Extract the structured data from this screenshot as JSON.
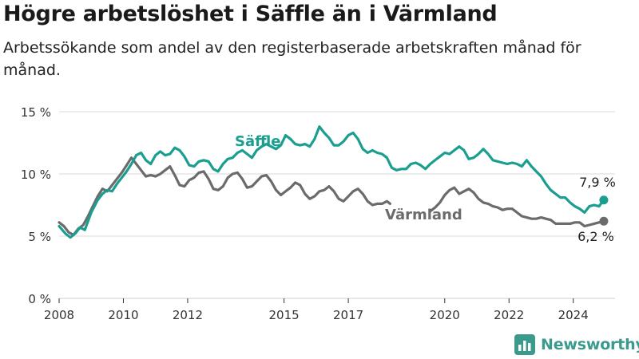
{
  "title": "Högre arbetslöshet i Säffle än i Värmland",
  "subtitle": "Arbetssökande som andel av den registerbaserade arbetskraften månad för månad.",
  "brand": {
    "name": "Newsworthy",
    "icon": "bar-chart-logo-icon"
  },
  "colors": {
    "saffle": "#1a9e8f",
    "varmland": "#6b6b6b",
    "grid": "#d9d9d9",
    "axis": "#333333",
    "brand": "#3a9a8c"
  },
  "chart_data": {
    "type": "line",
    "title": "Högre arbetslöshet i Säffle än i Värmland",
    "ylim": [
      0,
      15
    ],
    "xlim": [
      2008,
      2025.3
    ],
    "y_ticks": [
      0,
      5,
      10,
      15
    ],
    "y_tick_labels": [
      "0 %",
      "5 %",
      "10 %",
      "15 %"
    ],
    "x_ticks": [
      2008,
      2010,
      2012,
      2015,
      2017,
      2020,
      2022,
      2024
    ],
    "x_tick_labels": [
      "2008",
      "2010",
      "2012",
      "2015",
      "2017",
      "2020",
      "2022",
      "2024"
    ],
    "grid": "horizontal",
    "series": [
      {
        "name": "Säffle",
        "color": "#1a9e8f",
        "end_label": "7,9 %",
        "points": [
          [
            2008.0,
            5.8
          ],
          [
            2008.2,
            5.2
          ],
          [
            2008.35,
            4.9
          ],
          [
            2008.5,
            5.2
          ],
          [
            2008.65,
            5.7
          ],
          [
            2008.8,
            5.5
          ],
          [
            2009.0,
            6.9
          ],
          [
            2009.2,
            7.9
          ],
          [
            2009.35,
            8.4
          ],
          [
            2009.5,
            8.7
          ],
          [
            2009.65,
            8.6
          ],
          [
            2009.8,
            9.2
          ],
          [
            2009.95,
            9.7
          ],
          [
            2010.1,
            10.2
          ],
          [
            2010.25,
            10.8
          ],
          [
            2010.4,
            11.5
          ],
          [
            2010.55,
            11.7
          ],
          [
            2010.7,
            11.1
          ],
          [
            2010.85,
            10.8
          ],
          [
            2011.0,
            11.5
          ],
          [
            2011.15,
            11.8
          ],
          [
            2011.3,
            11.5
          ],
          [
            2011.45,
            11.6
          ],
          [
            2011.6,
            12.1
          ],
          [
            2011.75,
            11.9
          ],
          [
            2011.9,
            11.4
          ],
          [
            2012.05,
            10.7
          ],
          [
            2012.2,
            10.6
          ],
          [
            2012.35,
            11.0
          ],
          [
            2012.5,
            11.1
          ],
          [
            2012.65,
            11.0
          ],
          [
            2012.8,
            10.4
          ],
          [
            2012.95,
            10.2
          ],
          [
            2013.1,
            10.8
          ],
          [
            2013.25,
            11.2
          ],
          [
            2013.4,
            11.3
          ],
          [
            2013.55,
            11.7
          ],
          [
            2013.7,
            11.9
          ],
          [
            2013.85,
            11.6
          ],
          [
            2014.0,
            11.3
          ],
          [
            2014.15,
            11.9
          ],
          [
            2014.3,
            12.2
          ],
          [
            2014.45,
            12.4
          ],
          [
            2014.6,
            12.2
          ],
          [
            2014.75,
            12.0
          ],
          [
            2014.9,
            12.3
          ],
          [
            2015.05,
            13.1
          ],
          [
            2015.2,
            12.8
          ],
          [
            2015.35,
            12.4
          ],
          [
            2015.5,
            12.3
          ],
          [
            2015.65,
            12.4
          ],
          [
            2015.8,
            12.2
          ],
          [
            2015.95,
            12.8
          ],
          [
            2016.1,
            13.8
          ],
          [
            2016.25,
            13.3
          ],
          [
            2016.4,
            12.9
          ],
          [
            2016.55,
            12.3
          ],
          [
            2016.7,
            12.3
          ],
          [
            2016.85,
            12.6
          ],
          [
            2017.0,
            13.1
          ],
          [
            2017.15,
            13.3
          ],
          [
            2017.3,
            12.8
          ],
          [
            2017.45,
            12.0
          ],
          [
            2017.6,
            11.7
          ],
          [
            2017.75,
            11.9
          ],
          [
            2017.9,
            11.7
          ],
          [
            2018.05,
            11.6
          ],
          [
            2018.2,
            11.3
          ],
          [
            2018.35,
            10.5
          ],
          [
            2018.5,
            10.3
          ],
          [
            2018.65,
            10.4
          ],
          [
            2018.8,
            10.4
          ],
          [
            2018.95,
            10.8
          ],
          [
            2019.1,
            10.9
          ],
          [
            2019.25,
            10.7
          ],
          [
            2019.4,
            10.4
          ],
          [
            2019.55,
            10.8
          ],
          [
            2019.7,
            11.1
          ],
          [
            2019.85,
            11.4
          ],
          [
            2020.0,
            11.7
          ],
          [
            2020.15,
            11.6
          ],
          [
            2020.3,
            11.9
          ],
          [
            2020.45,
            12.2
          ],
          [
            2020.6,
            11.9
          ],
          [
            2020.75,
            11.2
          ],
          [
            2020.9,
            11.3
          ],
          [
            2021.05,
            11.6
          ],
          [
            2021.2,
            12.0
          ],
          [
            2021.35,
            11.6
          ],
          [
            2021.5,
            11.1
          ],
          [
            2021.65,
            11.0
          ],
          [
            2021.8,
            10.9
          ],
          [
            2021.95,
            10.8
          ],
          [
            2022.1,
            10.9
          ],
          [
            2022.25,
            10.8
          ],
          [
            2022.4,
            10.6
          ],
          [
            2022.55,
            11.1
          ],
          [
            2022.7,
            10.6
          ],
          [
            2022.85,
            10.2
          ],
          [
            2023.0,
            9.8
          ],
          [
            2023.15,
            9.2
          ],
          [
            2023.3,
            8.7
          ],
          [
            2023.45,
            8.4
          ],
          [
            2023.6,
            8.1
          ],
          [
            2023.75,
            8.1
          ],
          [
            2023.9,
            7.7
          ],
          [
            2024.05,
            7.4
          ],
          [
            2024.2,
            7.2
          ],
          [
            2024.35,
            6.9
          ],
          [
            2024.5,
            7.4
          ],
          [
            2024.65,
            7.5
          ],
          [
            2024.8,
            7.4
          ],
          [
            2024.95,
            7.9
          ]
        ]
      },
      {
        "name": "Värmland",
        "color": "#6b6b6b",
        "end_label": "6,2 %",
        "points": [
          [
            2008.0,
            6.1
          ],
          [
            2008.15,
            5.8
          ],
          [
            2008.3,
            5.3
          ],
          [
            2008.45,
            5.1
          ],
          [
            2008.6,
            5.6
          ],
          [
            2008.75,
            5.9
          ],
          [
            2008.9,
            6.6
          ],
          [
            2009.05,
            7.4
          ],
          [
            2009.2,
            8.2
          ],
          [
            2009.35,
            8.8
          ],
          [
            2009.5,
            8.6
          ],
          [
            2009.65,
            9.1
          ],
          [
            2009.8,
            9.6
          ],
          [
            2009.95,
            10.1
          ],
          [
            2010.1,
            10.7
          ],
          [
            2010.25,
            11.3
          ],
          [
            2010.4,
            10.8
          ],
          [
            2010.55,
            10.3
          ],
          [
            2010.7,
            9.8
          ],
          [
            2010.85,
            9.9
          ],
          [
            2011.0,
            9.8
          ],
          [
            2011.15,
            10.0
          ],
          [
            2011.3,
            10.3
          ],
          [
            2011.45,
            10.6
          ],
          [
            2011.6,
            9.9
          ],
          [
            2011.75,
            9.1
          ],
          [
            2011.9,
            9.0
          ],
          [
            2012.05,
            9.5
          ],
          [
            2012.2,
            9.7
          ],
          [
            2012.35,
            10.1
          ],
          [
            2012.5,
            10.2
          ],
          [
            2012.65,
            9.6
          ],
          [
            2012.8,
            8.8
          ],
          [
            2012.95,
            8.7
          ],
          [
            2013.1,
            9.0
          ],
          [
            2013.25,
            9.7
          ],
          [
            2013.4,
            10.0
          ],
          [
            2013.55,
            10.1
          ],
          [
            2013.7,
            9.6
          ],
          [
            2013.85,
            8.9
          ],
          [
            2014.0,
            9.0
          ],
          [
            2014.15,
            9.4
          ],
          [
            2014.3,
            9.8
          ],
          [
            2014.45,
            9.9
          ],
          [
            2014.6,
            9.4
          ],
          [
            2014.75,
            8.7
          ],
          [
            2014.9,
            8.3
          ],
          [
            2015.05,
            8.6
          ],
          [
            2015.2,
            8.9
          ],
          [
            2015.35,
            9.3
          ],
          [
            2015.5,
            9.1
          ],
          [
            2015.65,
            8.4
          ],
          [
            2015.8,
            8.0
          ],
          [
            2015.95,
            8.2
          ],
          [
            2016.1,
            8.6
          ],
          [
            2016.25,
            8.7
          ],
          [
            2016.4,
            9.0
          ],
          [
            2016.55,
            8.6
          ],
          [
            2016.7,
            8.0
          ],
          [
            2016.85,
            7.8
          ],
          [
            2017.0,
            8.2
          ],
          [
            2017.15,
            8.6
          ],
          [
            2017.3,
            8.8
          ],
          [
            2017.45,
            8.4
          ],
          [
            2017.6,
            7.8
          ],
          [
            2017.75,
            7.5
          ],
          [
            2017.9,
            7.6
          ],
          [
            2018.05,
            7.6
          ],
          [
            2018.2,
            7.8
          ],
          [
            2018.3,
            7.6
          ],
          [
            null,
            null
          ],
          [
            2019.55,
            7.0
          ],
          [
            2019.7,
            7.3
          ],
          [
            2019.85,
            7.7
          ],
          [
            2020.0,
            8.3
          ],
          [
            2020.15,
            8.7
          ],
          [
            2020.3,
            8.9
          ],
          [
            2020.45,
            8.4
          ],
          [
            2020.6,
            8.6
          ],
          [
            2020.75,
            8.8
          ],
          [
            2020.9,
            8.5
          ],
          [
            2021.05,
            8.0
          ],
          [
            2021.2,
            7.7
          ],
          [
            2021.35,
            7.6
          ],
          [
            2021.5,
            7.4
          ],
          [
            2021.65,
            7.3
          ],
          [
            2021.8,
            7.1
          ],
          [
            2021.95,
            7.2
          ],
          [
            2022.1,
            7.2
          ],
          [
            2022.25,
            6.9
          ],
          [
            2022.4,
            6.6
          ],
          [
            2022.55,
            6.5
          ],
          [
            2022.7,
            6.4
          ],
          [
            2022.85,
            6.4
          ],
          [
            2023.0,
            6.5
          ],
          [
            2023.15,
            6.4
          ],
          [
            2023.3,
            6.3
          ],
          [
            2023.45,
            6.0
          ],
          [
            2023.6,
            6.0
          ],
          [
            2023.75,
            6.0
          ],
          [
            2023.9,
            6.0
          ],
          [
            2024.05,
            6.1
          ],
          [
            2024.2,
            6.1
          ],
          [
            2024.35,
            5.8
          ],
          [
            2024.5,
            5.9
          ],
          [
            2024.65,
            6.0
          ],
          [
            2024.8,
            6.1
          ],
          [
            2024.95,
            6.2
          ]
        ]
      }
    ]
  }
}
